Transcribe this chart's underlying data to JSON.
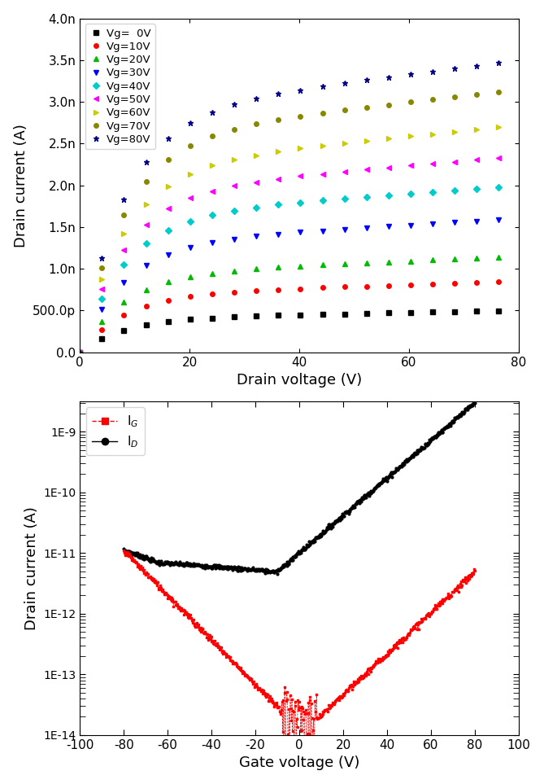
{
  "top_plot": {
    "xlabel": "Drain voltage (V)",
    "ylabel": "Drain current (A)",
    "xlim": [
      0,
      80
    ],
    "ylim": [
      0,
      4e-09
    ],
    "yticks": [
      0,
      5e-10,
      1e-09,
      1.5e-09,
      2e-09,
      2.5e-09,
      3e-09,
      3.5e-09,
      4e-09
    ],
    "ytick_labels": [
      "0.0",
      "500.0p",
      "1.0n",
      "1.5n",
      "2.0n",
      "2.5n",
      "3.0n",
      "3.5n",
      "4.0n"
    ],
    "xticks": [
      0,
      20,
      40,
      60,
      80
    ],
    "curves": [
      {
        "label": "Vg=  0V",
        "color": "#000000",
        "marker": "s",
        "end_val": 5e-10
      },
      {
        "label": "Vg=10V",
        "color": "#ff0000",
        "marker": "o",
        "end_val": 8.5e-10
      },
      {
        "label": "Vg=20V",
        "color": "#00bb00",
        "marker": "^",
        "end_val": 1.15e-09
      },
      {
        "label": "Vg=30V",
        "color": "#0000ff",
        "marker": "v",
        "end_val": 1.6e-09
      },
      {
        "label": "Vg=40V",
        "color": "#00cccc",
        "marker": "D",
        "end_val": 2e-09
      },
      {
        "label": "Vg=50V",
        "color": "#ff00ff",
        "marker": "<",
        "end_val": 2.35e-09
      },
      {
        "label": "Vg=60V",
        "color": "#cccc00",
        "marker": ">",
        "end_val": 2.72e-09
      },
      {
        "label": "Vg=70V",
        "color": "#888800",
        "marker": "o",
        "end_val": 3.15e-09
      },
      {
        "label": "Vg=80V",
        "color": "#00008b",
        "marker": "*",
        "end_val": 3.5e-09
      }
    ]
  },
  "bottom_plot": {
    "xlabel": "Gate voltage (V)",
    "ylabel": "Drain current (A)",
    "xlim": [
      -100,
      100
    ],
    "ylim_log": [
      -14,
      -8.5
    ],
    "xticks": [
      -100,
      -80,
      -60,
      -40,
      -20,
      0,
      20,
      40,
      60,
      80,
      100
    ],
    "ID_color": "#000000",
    "IG_color": "#ff0000",
    "ID_marker": "o",
    "IG_marker": "s",
    "legend_ID": "I$_{D}$",
    "legend_IG": "I$_{G}$"
  }
}
